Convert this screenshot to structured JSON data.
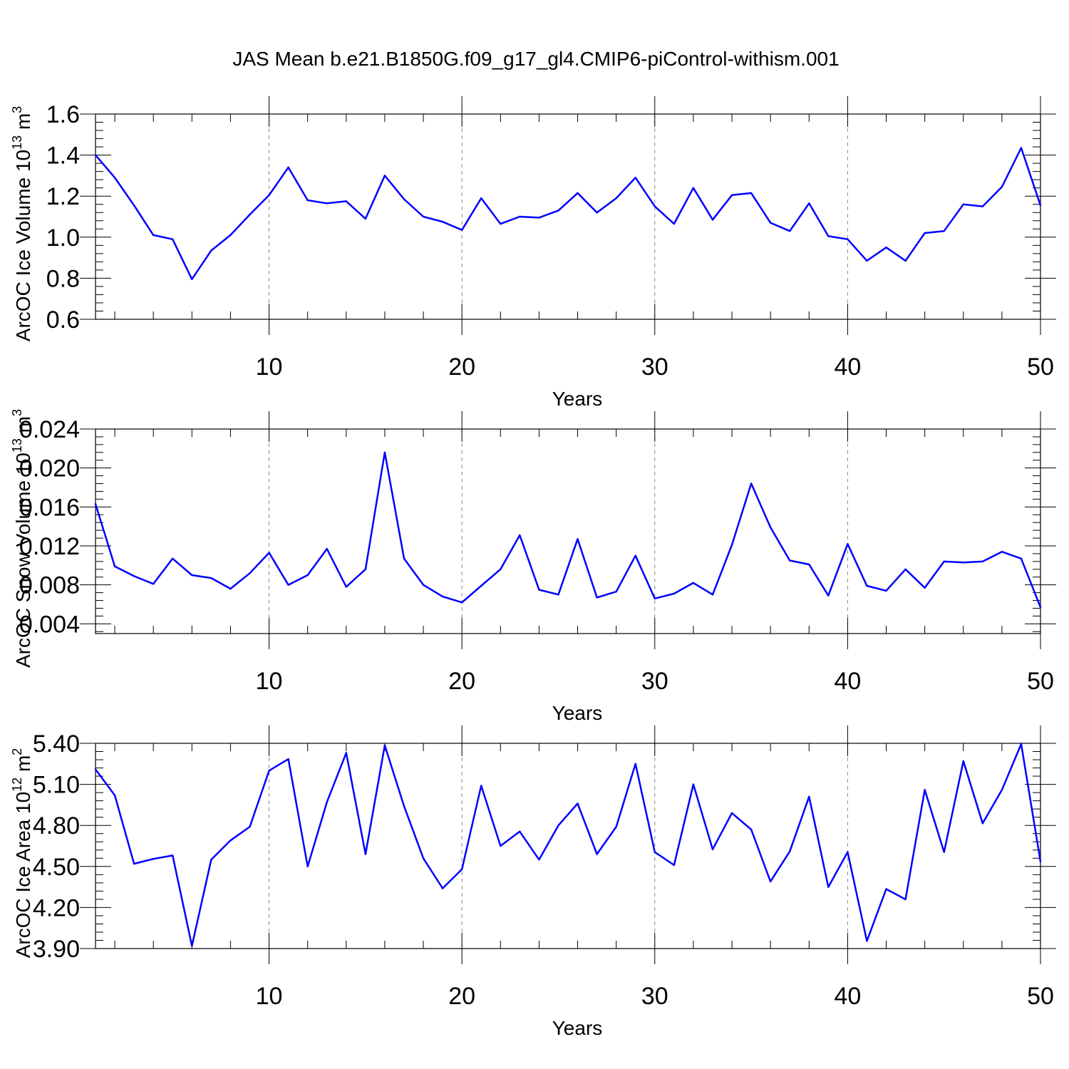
{
  "figure_title": "JAS Mean b.e21.B1850G.f09_g17_gl4.CMIP6-piControl-withism.001",
  "colors": {
    "line": "#0000ff",
    "axis": "#000000",
    "grid": "#888888"
  },
  "chart_data": [
    {
      "type": "line",
      "ylabel_parts": [
        "ArcOC Ice Volume 10",
        "13",
        " m",
        "3"
      ],
      "xlabel": "Years",
      "xlim": [
        1,
        50
      ],
      "ylim": [
        0.6,
        1.6
      ],
      "xticks": [
        10,
        20,
        30,
        40,
        50
      ],
      "yticks": [
        0.6,
        0.8,
        1.0,
        1.2,
        1.4,
        1.6
      ],
      "ytick_labels": [
        "0.6",
        "0.8",
        "1.0",
        "1.2",
        "1.4",
        "1.6"
      ],
      "series": [
        {
          "name": "ArcOC Ice Volume",
          "x": [
            1,
            2,
            3,
            4,
            5,
            6,
            7,
            8,
            9,
            10,
            11,
            12,
            13,
            14,
            15,
            16,
            17,
            18,
            19,
            20,
            21,
            22,
            23,
            24,
            25,
            26,
            27,
            28,
            29,
            30,
            31,
            32,
            33,
            34,
            35,
            36,
            37,
            38,
            39,
            40,
            41,
            42,
            43,
            44,
            45,
            46,
            47,
            48,
            49,
            50
          ],
          "values": [
            1.4,
            1.29,
            1.155,
            1.01,
            0.99,
            0.795,
            0.935,
            1.01,
            1.11,
            1.205,
            1.34,
            1.18,
            1.165,
            1.175,
            1.09,
            1.3,
            1.185,
            1.1,
            1.075,
            1.035,
            1.19,
            1.065,
            1.1,
            1.095,
            1.13,
            1.215,
            1.12,
            1.19,
            1.29,
            1.15,
            1.065,
            1.24,
            1.085,
            1.205,
            1.215,
            1.07,
            1.03,
            1.165,
            1.005,
            0.99,
            0.885,
            0.95,
            0.885,
            1.02,
            1.03,
            1.16,
            1.15,
            1.245,
            1.435,
            1.155
          ]
        }
      ]
    },
    {
      "type": "line",
      "ylabel_parts": [
        "ArcOC Snow Volume 10",
        "13",
        " m",
        "3"
      ],
      "xlabel": "Years",
      "xlim": [
        1,
        50
      ],
      "ylim": [
        0.003,
        0.024
      ],
      "xticks": [
        10,
        20,
        30,
        40,
        50
      ],
      "yticks": [
        0.004,
        0.008,
        0.012,
        0.016,
        0.02,
        0.024
      ],
      "ytick_labels": [
        "0.004",
        "0.008",
        "0.012",
        "0.016",
        "0.020",
        "0.024"
      ],
      "series": [
        {
          "name": "ArcOC Snow Volume",
          "x": [
            1,
            2,
            3,
            4,
            5,
            6,
            7,
            8,
            9,
            10,
            11,
            12,
            13,
            14,
            15,
            16,
            17,
            18,
            19,
            20,
            21,
            22,
            23,
            24,
            25,
            26,
            27,
            28,
            29,
            30,
            31,
            32,
            33,
            34,
            35,
            36,
            37,
            38,
            39,
            40,
            41,
            42,
            43,
            44,
            45,
            46,
            47,
            48,
            49,
            50
          ],
          "values": [
            0.0163,
            0.0099,
            0.0089,
            0.0081,
            0.0107,
            0.009,
            0.0087,
            0.0076,
            0.0092,
            0.0113,
            0.008,
            0.009,
            0.0117,
            0.0078,
            0.0096,
            0.0216,
            0.0107,
            0.008,
            0.0068,
            0.0062,
            0.0079,
            0.0096,
            0.0131,
            0.0075,
            0.007,
            0.0127,
            0.0067,
            0.0073,
            0.011,
            0.0066,
            0.0071,
            0.0082,
            0.007,
            0.0121,
            0.0184,
            0.0139,
            0.0105,
            0.0101,
            0.0069,
            0.0122,
            0.0079,
            0.0074,
            0.0096,
            0.0077,
            0.0104,
            0.0103,
            0.0104,
            0.0114,
            0.0107,
            0.0057
          ]
        }
      ]
    },
    {
      "type": "line",
      "ylabel_parts": [
        "ArcOC Ice Area 10",
        "12",
        " m",
        "2"
      ],
      "xlabel": "Years",
      "xlim": [
        1,
        50
      ],
      "ylim": [
        3.9,
        5.4
      ],
      "xticks": [
        10,
        20,
        30,
        40,
        50
      ],
      "yticks": [
        3.9,
        4.2,
        4.5,
        4.8,
        5.1,
        5.4
      ],
      "ytick_labels": [
        "3.90",
        "4.20",
        "4.50",
        "4.80",
        "5.10",
        "5.40"
      ],
      "series": [
        {
          "name": "ArcOC Ice Area",
          "x": [
            1,
            2,
            3,
            4,
            5,
            6,
            7,
            8,
            9,
            10,
            11,
            12,
            13,
            14,
            15,
            16,
            17,
            18,
            19,
            20,
            21,
            22,
            23,
            24,
            25,
            26,
            27,
            28,
            29,
            30,
            31,
            32,
            33,
            34,
            35,
            36,
            37,
            38,
            39,
            40,
            41,
            42,
            43,
            44,
            45,
            46,
            47,
            48,
            49,
            50
          ],
          "values": [
            5.21,
            5.02,
            4.52,
            4.555,
            4.58,
            3.92,
            4.55,
            4.69,
            4.79,
            5.2,
            5.285,
            4.5,
            4.97,
            5.33,
            4.59,
            5.385,
            4.94,
            4.56,
            4.34,
            4.48,
            5.09,
            4.65,
            4.755,
            4.55,
            4.8,
            4.96,
            4.59,
            4.79,
            5.25,
            4.605,
            4.51,
            5.1,
            4.625,
            4.89,
            4.77,
            4.39,
            4.61,
            5.01,
            4.35,
            4.605,
            3.955,
            4.335,
            4.26,
            5.06,
            4.605,
            5.27,
            4.815,
            5.06,
            5.395,
            4.535
          ]
        }
      ]
    }
  ]
}
